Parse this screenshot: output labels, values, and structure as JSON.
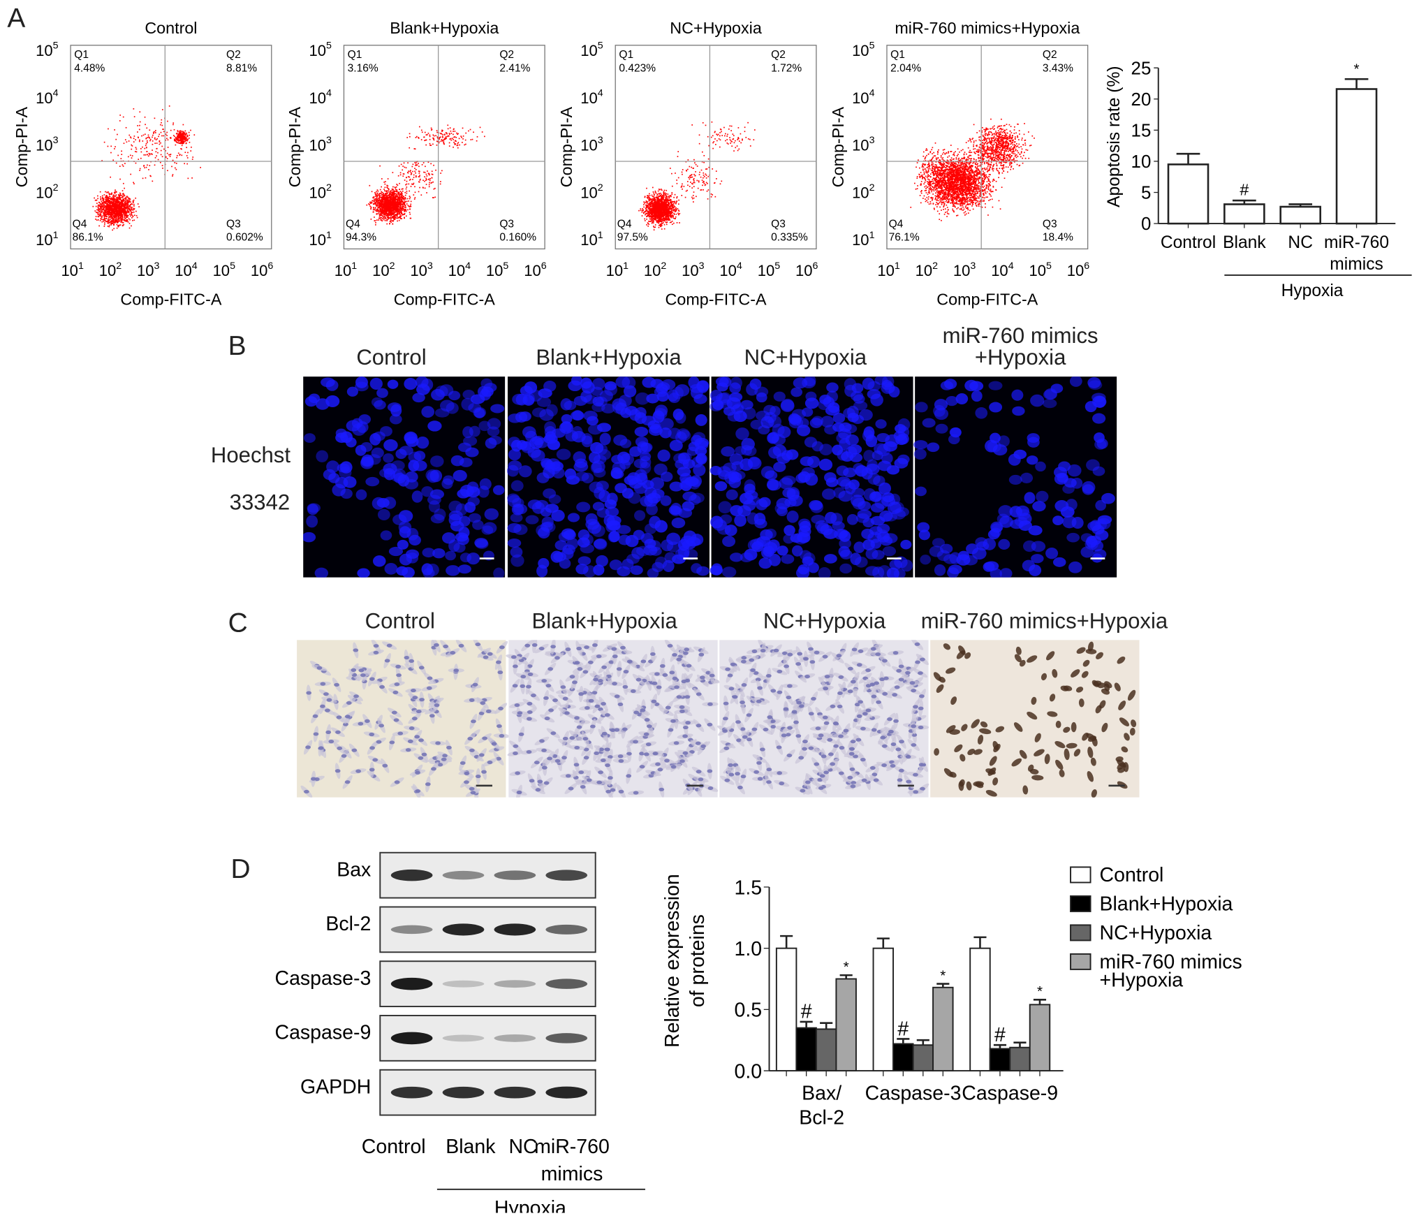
{
  "panels": {
    "a": "A",
    "b": "B",
    "c": "C",
    "d": "D"
  },
  "flow": {
    "xlabel": "Comp-FITC-A",
    "ylabel": "Comp-PI-A",
    "ticks": [
      "1",
      "2",
      "3",
      "4",
      "5",
      "6"
    ],
    "plots": [
      {
        "title": "Control",
        "q1": "Q1",
        "q1v": "4.48%",
        "q2": "Q2",
        "q2v": "8.81%",
        "q3": "Q3",
        "q3v": "0.602%",
        "q4": "Q4",
        "q4v": "86.1%"
      },
      {
        "title": "Blank+Hypoxia",
        "q1": "Q1",
        "q1v": "3.16%",
        "q2": "Q2",
        "q2v": "2.41%",
        "q3": "Q3",
        "q3v": "0.160%",
        "q4": "Q4",
        "q4v": "94.3%"
      },
      {
        "title": "NC+Hypoxia",
        "q1": "Q1",
        "q1v": "0.423%",
        "q2": "Q2",
        "q2v": "1.72%",
        "q3": "Q3",
        "q3v": "0.335%",
        "q4": "Q4",
        "q4v": "97.5%"
      },
      {
        "title": "miR-760 mimics+Hypoxia",
        "q1": "Q1",
        "q1v": "2.04%",
        "q2": "Q2",
        "q2v": "3.43%",
        "q3": "Q3",
        "q3v": "18.4%",
        "q4": "Q4",
        "q4v": "76.1%"
      }
    ],
    "dot_color": "#ff0000"
  },
  "chart_data": [
    {
      "type": "bar",
      "ylabel": "Apoptosis rate (%)",
      "categories": [
        "Control",
        "Blank",
        "NC",
        "miR-760 mimics"
      ],
      "values": [
        9.5,
        3.1,
        2.7,
        21.6
      ],
      "errors": [
        1.7,
        0.6,
        0.4,
        1.6
      ],
      "annotations": [
        "",
        "#",
        "",
        "*"
      ],
      "ylim": [
        0,
        25
      ],
      "yticks": [
        "0",
        "5",
        "10",
        "15",
        "20",
        "25"
      ],
      "group_label": "Hypoxia",
      "bar_color": "#ffffff"
    },
    {
      "type": "bar",
      "ylabel": "Relative expression of proteins",
      "ylabel_lines": [
        "Relative expression",
        "of proteins"
      ],
      "categories": [
        "Bax/ Bcl-2",
        "Caspase-3",
        "Caspase-9"
      ],
      "category_lines": [
        [
          "Bax/",
          "Bcl-2"
        ],
        [
          "Caspase-3"
        ],
        [
          "Caspase-9"
        ]
      ],
      "series": [
        {
          "name": "Control",
          "values": [
            1.0,
            1.0,
            1.0
          ],
          "errors": [
            0.1,
            0.08,
            0.09
          ],
          "color": "#ffffff",
          "annotations": [
            "",
            "",
            ""
          ]
        },
        {
          "name": "Blank+Hypoxia",
          "values": [
            0.35,
            0.22,
            0.18
          ],
          "errors": [
            0.05,
            0.04,
            0.03
          ],
          "color": "#000000",
          "annotations": [
            "#",
            "#",
            "#"
          ]
        },
        {
          "name": "NC+Hypoxia",
          "values": [
            0.34,
            0.21,
            0.19
          ],
          "errors": [
            0.05,
            0.04,
            0.04
          ],
          "color": "#666666",
          "annotations": [
            "",
            "",
            ""
          ]
        },
        {
          "name": "miR-760 mimics+Hypoxia",
          "values": [
            0.75,
            0.68,
            0.54
          ],
          "errors": [
            0.03,
            0.03,
            0.04
          ],
          "color": "#a6a6a6",
          "annotations": [
            "*",
            "*",
            "*"
          ]
        }
      ],
      "legend_lines": [
        [
          "Control"
        ],
        [
          "Blank+Hypoxia"
        ],
        [
          "NC+Hypoxia"
        ],
        [
          "miR-760 mimics",
          "+Hypoxia"
        ]
      ],
      "ylim": [
        0,
        1.5
      ],
      "yticks": [
        "0.0",
        "0.5",
        "1.0",
        "1.5"
      ],
      "legend": "right"
    }
  ],
  "hoechst": {
    "row_label_1": "Hoechst",
    "row_label_2": "33342",
    "titles": [
      "Control",
      "Blank+Hypoxia",
      "NC+Hypoxia"
    ],
    "title4a": "miR-760 mimics",
    "title4b": "+Hypoxia",
    "color": "#1a1aff"
  },
  "tunel": {
    "titles": [
      "Control",
      "Blank+Hypoxia",
      "NC+Hypoxia",
      "miR-760 mimics+Hypoxia"
    ]
  },
  "western": {
    "bands": [
      "Bax",
      "Bcl-2",
      "Caspase-3",
      "Caspase-9",
      "GAPDH"
    ],
    "lanes": [
      "Control",
      "Blank",
      "NC",
      "miR-760"
    ],
    "lane4b": "mimics",
    "group_label": "Hypoxia",
    "intensity": [
      [
        0.85,
        0.45,
        0.55,
        0.75
      ],
      [
        0.45,
        0.9,
        0.9,
        0.6
      ],
      [
        0.95,
        0.2,
        0.3,
        0.65
      ],
      [
        0.95,
        0.2,
        0.3,
        0.65
      ],
      [
        0.85,
        0.85,
        0.85,
        0.9
      ]
    ]
  }
}
